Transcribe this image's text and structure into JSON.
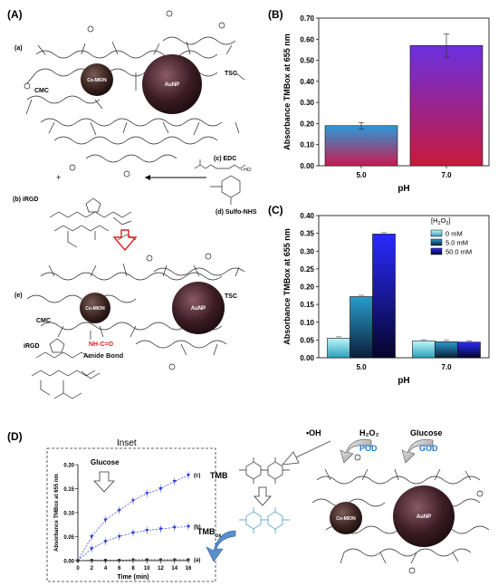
{
  "panels": {
    "A": {
      "label": "(A)",
      "step_a": "(a)",
      "step_b": "(b) iRGD",
      "step_c": "(c) EDC",
      "step_d": "(d) Sulfo-NHS",
      "step_e": "(e)",
      "plus": "+",
      "hcl": "• HCl",
      "cmc": "CMC",
      "tsc": "TSC",
      "irgd": "iRGD",
      "co_mion": "Co-MION",
      "aunp": "AuNP",
      "amide_formula": "NH-C=O",
      "amide_label": "Amide Bond"
    },
    "B": {
      "label": "(B)"
    },
    "C": {
      "label": "(C)"
    },
    "D": {
      "label": "(D)",
      "inset_title": "Inset",
      "glucose": "Glucose",
      "tmb": "TMB",
      "tmb_ox": "TMB",
      "tmb_ox_sub": "ox",
      "oh": "•OH",
      "h2o2": "H₂O₂",
      "glucose2": "Glucose",
      "pod": "POD",
      "god": "GOD",
      "co_mion": "Co-MION",
      "aunp": "AuNP"
    }
  },
  "chart_data": [
    {
      "panel": "B",
      "type": "bar",
      "categories": [
        "5.0",
        "7.0"
      ],
      "values": [
        0.19,
        0.57
      ],
      "errors": [
        0.015,
        0.055
      ],
      "xlabel": "pH",
      "ylabel": "Absorbance TMBox at 655 nm",
      "ylim": [
        0,
        0.7
      ],
      "yticks": [
        "0.00",
        "0.10",
        "0.20",
        "0.30",
        "0.40",
        "0.50",
        "0.60",
        "0.70"
      ]
    },
    {
      "panel": "C",
      "type": "bar",
      "categories": [
        "5.0",
        "7.0"
      ],
      "series": [
        {
          "name": "0 mM",
          "values": [
            0.055,
            0.047
          ],
          "color": "#7fe6f0"
        },
        {
          "name": "5.0 mM",
          "values": [
            0.172,
            0.045
          ],
          "color": "#1a7ea8"
        },
        {
          "name": "50.0 mM",
          "values": [
            0.348,
            0.044
          ],
          "color": "#2323e0"
        }
      ],
      "legend_title": "[H2O2]",
      "legend_title_main": "[H",
      "legend_title_sub": "2",
      "legend_title_mid": "O",
      "legend_title_end": "]",
      "xlabel": "pH",
      "ylabel": "Absorbance TMBox at 655 nm",
      "ylim": [
        0,
        0.4
      ],
      "yticks": [
        "0.00",
        "0.05",
        "0.10",
        "0.15",
        "0.20",
        "0.25",
        "0.30",
        "0.35",
        "0.40"
      ],
      "legend": "top-right"
    },
    {
      "panel": "D-inset",
      "type": "line",
      "x": [
        0,
        2,
        4,
        6,
        8,
        10,
        12,
        14,
        16
      ],
      "series": [
        {
          "name": "(c)",
          "x": [
            0,
            2,
            4,
            6,
            8,
            10,
            12,
            14,
            16
          ],
          "values": [
            0.0,
            0.05,
            0.085,
            0.105,
            0.125,
            0.14,
            0.15,
            0.165,
            0.178
          ],
          "color": "#2a3adf"
        },
        {
          "name": "(b)",
          "x": [
            0,
            2,
            4,
            6,
            8,
            10,
            12,
            14,
            16
          ],
          "values": [
            0.0,
            0.025,
            0.04,
            0.05,
            0.058,
            0.063,
            0.066,
            0.069,
            0.071
          ],
          "color": "#2a3adf"
        },
        {
          "name": "(a)",
          "x": [
            0,
            2,
            4,
            6,
            8,
            10,
            12,
            14,
            16
          ],
          "values": [
            0.0,
            0.001,
            0.001,
            0.001,
            0.002,
            0.002,
            0.002,
            0.002,
            0.002
          ],
          "color": "#333333"
        }
      ],
      "xlabel": "Time (min)",
      "ylabel": "Absorbance TMBox at 655 nm",
      "xlim": [
        0,
        16
      ],
      "ylim": [
        0,
        0.2
      ],
      "xticks": [
        "0",
        "2",
        "4",
        "6",
        "8",
        "10",
        "12",
        "14",
        "16"
      ],
      "yticks": [
        "0.00",
        "0.05",
        "0.10",
        "0.15",
        "0.20"
      ]
    }
  ]
}
